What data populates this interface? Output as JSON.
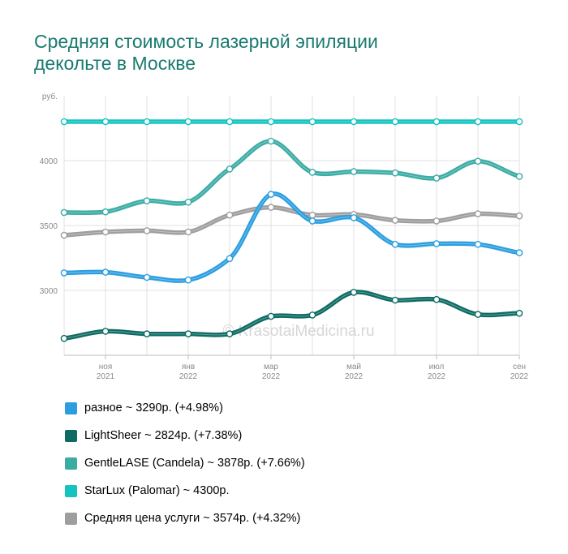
{
  "title": {
    "line1": "Средняя стоимость лазерной эпиляции",
    "line2": "декольте в Москве"
  },
  "watermark": "© KrasotaiMedicina.ru",
  "chart_data": {
    "type": "line",
    "ylabel": "руб.",
    "ylim": [
      2500,
      4500
    ],
    "yticks": [
      3000,
      3500,
      4000
    ],
    "grid": true,
    "legend_position": "bottom",
    "x_ticks": [
      {
        "month": "ноя",
        "year": "2021"
      },
      {
        "month": "янв",
        "year": "2022"
      },
      {
        "month": "мар",
        "year": "2022"
      },
      {
        "month": "май",
        "year": "2022"
      },
      {
        "month": "июл",
        "year": "2022"
      },
      {
        "month": "сен",
        "year": "2022"
      }
    ],
    "categories": [
      "2021-10",
      "2021-11",
      "2021-12",
      "2022-01",
      "2022-02",
      "2022-03",
      "2022-04",
      "2022-05",
      "2022-06",
      "2022-07",
      "2022-08",
      "2022-09"
    ],
    "series": [
      {
        "name": "StarLux (Palomar)",
        "color": "#14c4c0",
        "legend": "StarLux (Palomar) ~ 4300р.",
        "values": [
          4300,
          4300,
          4300,
          4300,
          4300,
          4300,
          4300,
          4300,
          4300,
          4300,
          4300,
          4300
        ]
      },
      {
        "name": "GentleLASE (Candela)",
        "color": "#3aaca4",
        "legend": "GentleLASE (Candela) ~ 3878р. (+7.66%)",
        "values": [
          3600,
          3605,
          3690,
          3680,
          3935,
          4150,
          3910,
          3915,
          3905,
          3865,
          3995,
          3878
        ]
      },
      {
        "name": "Средняя цена услуги",
        "color": "#9e9e9e",
        "legend": "Средняя цена услуги ~ 3574р. (+4.32%)",
        "values": [
          3425,
          3450,
          3460,
          3450,
          3580,
          3640,
          3580,
          3585,
          3540,
          3535,
          3590,
          3574
        ]
      },
      {
        "name": "разное",
        "color": "#2c9ee0",
        "legend": "разное ~ 3290р. (+4.98%)",
        "values": [
          3135,
          3140,
          3100,
          3080,
          3245,
          3740,
          3535,
          3560,
          3355,
          3360,
          3355,
          3290
        ]
      },
      {
        "name": "LightSheer",
        "color": "#0d6b63",
        "legend": "LightSheer ~ 2824р. (+7.38%)",
        "values": [
          2630,
          2685,
          2665,
          2665,
          2665,
          2800,
          2810,
          2985,
          2925,
          2930,
          2815,
          2824
        ]
      }
    ],
    "legend_order": [
      "разное",
      "LightSheer",
      "GentleLASE (Candela)",
      "StarLux (Palomar)",
      "Средняя цена услуги"
    ]
  }
}
